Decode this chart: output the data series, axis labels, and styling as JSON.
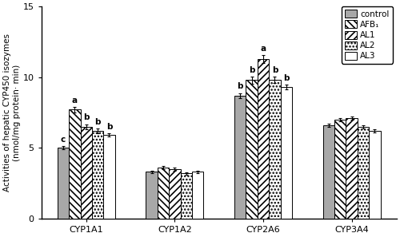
{
  "groups": [
    "CYP1A1",
    "CYP1A2",
    "CYP2A6",
    "CYP3A4"
  ],
  "series_labels": [
    "control",
    "AFB₁",
    "AL1",
    "AL2",
    "AL3"
  ],
  "values": [
    [
      5.0,
      3.3,
      8.7,
      6.6
    ],
    [
      7.7,
      3.6,
      9.8,
      7.0
    ],
    [
      6.5,
      3.5,
      11.3,
      7.1
    ],
    [
      6.2,
      3.2,
      9.8,
      6.5
    ],
    [
      5.9,
      3.3,
      9.3,
      6.2
    ]
  ],
  "errors": [
    [
      0.12,
      0.08,
      0.18,
      0.12
    ],
    [
      0.18,
      0.1,
      0.25,
      0.13
    ],
    [
      0.18,
      0.1,
      0.28,
      0.13
    ],
    [
      0.15,
      0.09,
      0.22,
      0.11
    ],
    [
      0.12,
      0.08,
      0.18,
      0.09
    ]
  ],
  "sig_labels": [
    [
      "c",
      "",
      "b",
      ""
    ],
    [
      "a",
      "",
      "b",
      ""
    ],
    [
      "b",
      "",
      "a",
      ""
    ],
    [
      "b",
      "",
      "b",
      ""
    ],
    [
      "b",
      "",
      "b",
      ""
    ]
  ],
  "bar_colors": [
    "#a8a8a8",
    "#ffffff",
    "#ffffff",
    "#ffffff",
    "#ffffff"
  ],
  "hatches": [
    "",
    "\\\\\\\\",
    "////",
    "....",
    "===="
  ],
  "edgecolor": "#000000",
  "ylabel": "Activities of hepatic CYP450 isozymes\n(nmol/mg protein· min)",
  "ylim": [
    0,
    15
  ],
  "yticks": [
    0,
    5,
    10,
    15
  ],
  "bar_width": 0.13,
  "legend_fontsize": 7.5,
  "axis_fontsize": 7.5,
  "tick_fontsize": 8,
  "sig_fontsize": 7.5
}
